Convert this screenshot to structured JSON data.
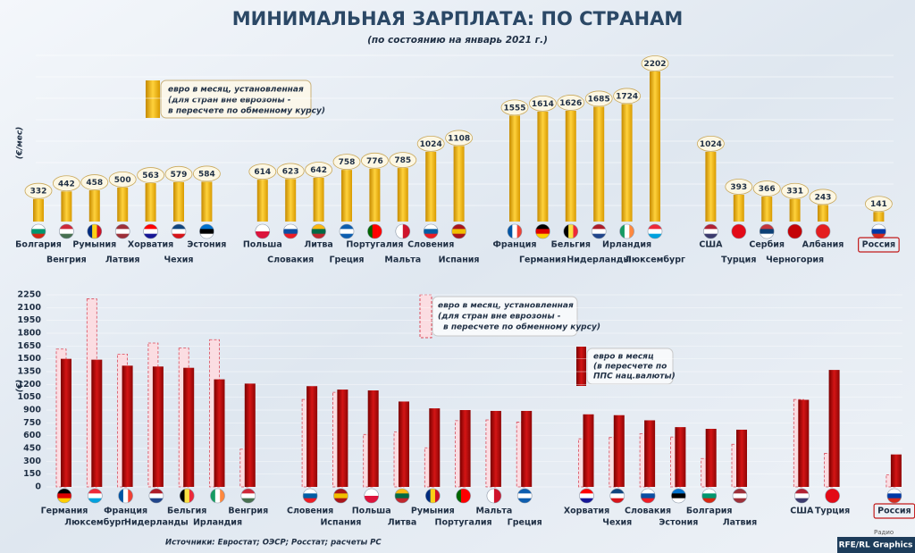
{
  "chart_data": [
    {
      "type": "bar",
      "title": "МИНИМАЛЬНАЯ ЗАРПЛАТА: ПО СТРАНАМ",
      "subtitle": "(по состоянию на январь 2021 г.)",
      "y_label": "(€/мес)",
      "categories": [
        "Болгария",
        "Венгрия",
        "Румыния",
        "Латвия",
        "Хорватия",
        "Чехия",
        "Эстония",
        "Польша",
        "Словакия",
        "Литва",
        "Греция",
        "Португалия",
        "Мальта",
        "Словения",
        "Испания",
        "Франция",
        "Германия",
        "Бельгия",
        "Нидерланды",
        "Ирландия",
        "Люксембург",
        "США",
        "Турция",
        "Сербия",
        "Черногория",
        "Албания",
        "Россия"
      ],
      "ylim": [
        0,
        2300
      ],
      "series": [
        {
          "name": [
            "евро в месяц, установленная",
            "(для стран вне еврозоны -",
            "в пересчете по обменному курсу)"
          ],
          "color": "#f0b400",
          "values": [
            332,
            442,
            458,
            500,
            563,
            579,
            584,
            614,
            623,
            642,
            758,
            776,
            785,
            1024,
            1108,
            1555,
            1614,
            1626,
            1685,
            1724,
            2202,
            1024,
            393,
            366,
            331,
            243,
            141
          ]
        }
      ]
    },
    {
      "type": "grouped_bar",
      "y_label": "(€)",
      "categories": [
        "Германия",
        "Люксембург",
        "Франция",
        "Нидерланды",
        "Бельгия",
        "Ирландия",
        "Венгрия",
        "Словения",
        "Испания",
        "Польша",
        "Литва",
        "Румыния",
        "Португалия",
        "Мальта",
        "Греция",
        "Хорватия",
        "Чехия",
        "Словакия",
        "Эстония",
        "Болгария",
        "Латвия",
        "США",
        "Турция",
        "Россия"
      ],
      "ylim": [
        0,
        2250
      ],
      "yticks": [
        0,
        150,
        300,
        450,
        600,
        750,
        900,
        1050,
        1200,
        1350,
        1500,
        1650,
        1800,
        1950,
        2100,
        2250
      ],
      "grid": true,
      "series": [
        {
          "name": [
            "евро в месяц, установленная",
            "(для стран вне еврозоны -",
            "в пересчете по обменному курсу)"
          ],
          "color": "#fbdde2",
          "values": [
            1614,
            2202,
            1555,
            1685,
            1626,
            1724,
            442,
            1024,
            1108,
            614,
            642,
            458,
            776,
            785,
            758,
            563,
            579,
            623,
            584,
            332,
            500,
            1024,
            393,
            141
          ]
        },
        {
          "name": [
            "евро в месяц",
            "(в пересчете по",
            "ППС нац.валюты)"
          ],
          "color": "#b80d0d",
          "values": [
            1500,
            1490,
            1420,
            1410,
            1395,
            1260,
            1210,
            1180,
            1140,
            1130,
            1000,
            920,
            900,
            890,
            890,
            850,
            840,
            780,
            700,
            680,
            670,
            1020,
            1370,
            380
          ]
        }
      ]
    }
  ],
  "footer": {
    "source": "Источники: Евростат; ОЭСР; Росстат; расчеты РС",
    "credit": "RFE/RL Graphics",
    "logo": "Радио"
  }
}
